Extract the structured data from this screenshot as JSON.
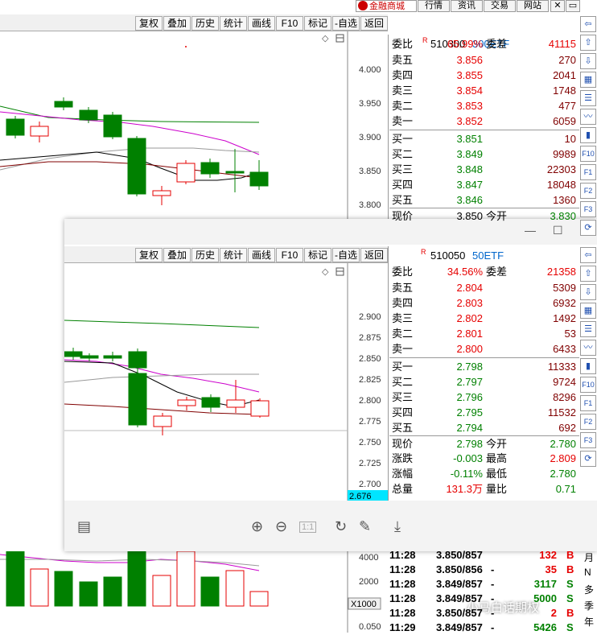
{
  "top_menu": {
    "brand": "金融商城",
    "items": [
      "行情",
      "资讯",
      "交易",
      "网站"
    ]
  },
  "toolbar": [
    "复权",
    "叠加",
    "历史",
    "统计",
    "画线",
    "F10",
    "标记",
    "-自选",
    "返回"
  ],
  "back_quote": {
    "code": "510300",
    "name": "300ETF",
    "wb_label": "委比",
    "wb_pct": "65.99%",
    "wc_label": "委差",
    "wc_val": "41115",
    "asks": [
      {
        "label": "卖五",
        "price": "3.856",
        "vol": "270"
      },
      {
        "label": "卖四",
        "price": "3.855",
        "vol": "2041"
      },
      {
        "label": "卖三",
        "price": "3.854",
        "vol": "1748"
      },
      {
        "label": "卖二",
        "price": "3.853",
        "vol": "477"
      },
      {
        "label": "卖一",
        "price": "3.852",
        "vol": "6059"
      }
    ],
    "bids": [
      {
        "label": "买一",
        "price": "3.851",
        "vol": "10"
      },
      {
        "label": "买二",
        "price": "3.849",
        "vol": "9989"
      },
      {
        "label": "买三",
        "price": "3.848",
        "vol": "22303"
      },
      {
        "label": "买四",
        "price": "3.847",
        "vol": "18048"
      },
      {
        "label": "买五",
        "price": "3.846",
        "vol": "1360"
      }
    ],
    "last_label": "现价",
    "last": "3.850",
    "open_label": "今开",
    "open": "3.830",
    "yticks": [
      "4.000",
      "3.950",
      "3.900",
      "3.850",
      "3.800"
    ],
    "vol_ticks": [
      "4000",
      "2000"
    ],
    "vol_unit": "X1000",
    "macd_tick": "0.050",
    "ticks": [
      {
        "time": "11:28",
        "price": "3.850/857",
        "flag": "",
        "vol": "132",
        "side": "B"
      },
      {
        "time": "11:28",
        "price": "3.850/856",
        "flag": "-",
        "vol": "35",
        "side": "B"
      },
      {
        "time": "11:28",
        "price": "3.849/857",
        "flag": "-",
        "vol": "3117",
        "side": "S"
      },
      {
        "time": "11:28",
        "price": "3.849/857",
        "flag": "-",
        "vol": "5000",
        "side": "S"
      },
      {
        "time": "11:28",
        "price": "3.850/857",
        "flag": "-",
        "vol": "2",
        "side": "B"
      },
      {
        "time": "11:29",
        "price": "3.849/857",
        "flag": "-",
        "vol": "5426",
        "side": "S"
      }
    ],
    "period_labels": [
      "月",
      "N",
      "多",
      "季",
      "年"
    ]
  },
  "front_quote": {
    "code": "510050",
    "name": "50ETF",
    "wb_label": "委比",
    "wb_pct": "34.56%",
    "wc_label": "委差",
    "wc_val": "21358",
    "asks": [
      {
        "label": "卖五",
        "price": "2.804",
        "vol": "5309"
      },
      {
        "label": "卖四",
        "price": "2.803",
        "vol": "6932"
      },
      {
        "label": "卖三",
        "price": "2.802",
        "vol": "1492"
      },
      {
        "label": "卖二",
        "price": "2.801",
        "vol": "53"
      },
      {
        "label": "卖一",
        "price": "2.800",
        "vol": "6433"
      }
    ],
    "bids": [
      {
        "label": "买一",
        "price": "2.798",
        "vol": "11333"
      },
      {
        "label": "买二",
        "price": "2.797",
        "vol": "9724"
      },
      {
        "label": "买三",
        "price": "2.796",
        "vol": "8296"
      },
      {
        "label": "买四",
        "price": "2.795",
        "vol": "11532"
      },
      {
        "label": "买五",
        "price": "2.794",
        "vol": "692"
      }
    ],
    "stats": [
      {
        "l1": "现价",
        "v1": "2.798",
        "l2": "今开",
        "v2": "2.780"
      },
      {
        "l1": "涨跌",
        "v1": "-0.003",
        "l2": "最高",
        "v2": "2.809"
      },
      {
        "l1": "涨幅",
        "v1": "-0.11%",
        "l2": "最低",
        "v2": "2.780"
      },
      {
        "l1": "总量",
        "v1": "131.3万",
        "l2": "量比",
        "v2": "0.71"
      }
    ],
    "yticks": [
      "2.900",
      "2.875",
      "2.850",
      "2.825",
      "2.800",
      "2.775",
      "2.750",
      "2.725",
      "2.700"
    ],
    "cursor_price": "2.676"
  },
  "icons": [
    "arrow-left-icon",
    "arrow-up-icon",
    "arrow-down-icon",
    "grid-icon",
    "list-icon",
    "line-chart-icon",
    "candle-icon",
    "f10-icon",
    "f1-icon",
    "f2-icon",
    "f3-icon",
    "refresh-icon"
  ],
  "icon_labels": [
    "F10",
    "F1",
    "F2",
    "F3"
  ],
  "viewer_tools": [
    "layout-icon",
    "zoom-in-icon",
    "zoom-out-icon",
    "fit-icon",
    "rotate-icon",
    "edit-icon",
    "download-icon"
  ],
  "fit_label": "1:1",
  "watermark": "小马白话期权",
  "colors": {
    "up": "#e60000",
    "down": "#008000",
    "code": "#0066cc",
    "toolbar": "#f0f0f0",
    "cursor_bg": "#00e5ff"
  }
}
